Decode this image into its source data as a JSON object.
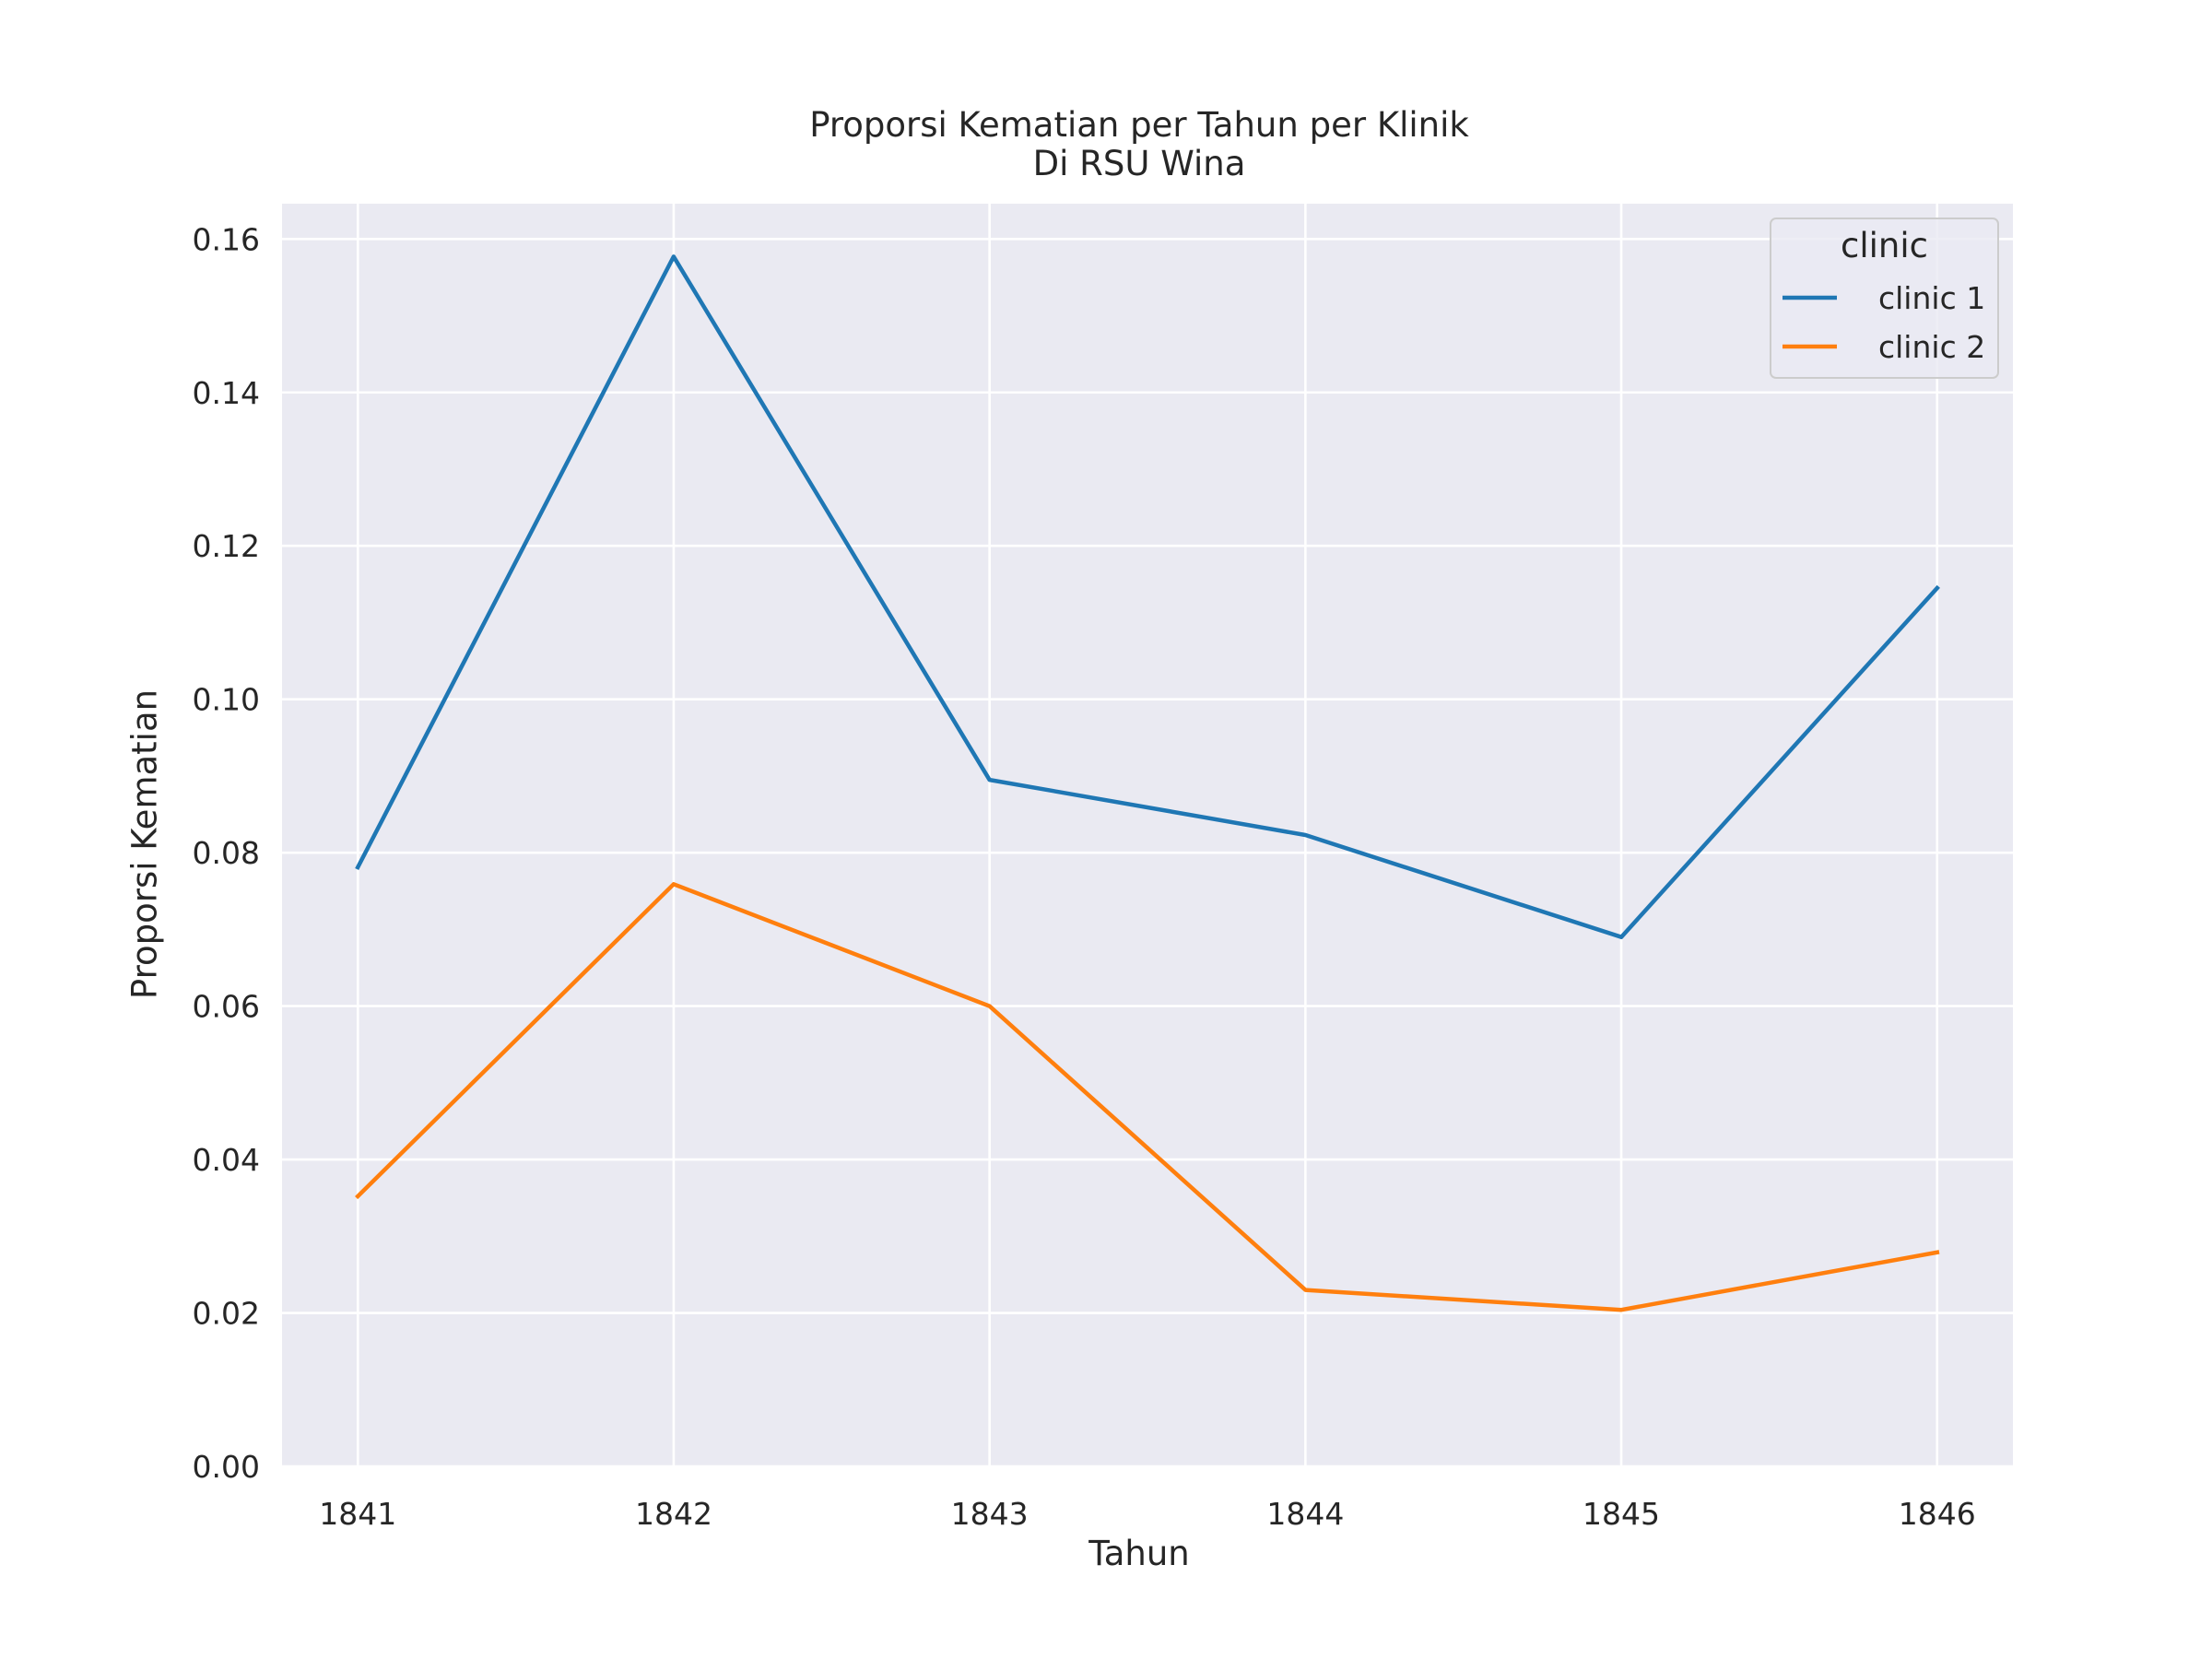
{
  "chart_data": {
    "type": "line",
    "title": "Proporsi Kematian per Tahun per Klinik",
    "subtitle": "Di RSU Wina",
    "xlabel": "Tahun",
    "ylabel": "Proporsi Kematian",
    "x": [
      1841,
      1842,
      1843,
      1844,
      1845,
      1846
    ],
    "xticks": [
      "1841",
      "1842",
      "1843",
      "1844",
      "1845",
      "1846"
    ],
    "yticks": [
      "0.00",
      "0.02",
      "0.04",
      "0.06",
      "0.08",
      "0.10",
      "0.12",
      "0.14",
      "0.16"
    ],
    "xlim": [
      1840.76,
      1846.24
    ],
    "ylim": [
      0.0,
      0.1646
    ],
    "grid": true,
    "legend": {
      "title": "clinic",
      "placement": "top-right"
    },
    "series": [
      {
        "name": "clinic 1",
        "color": "#1f77b4",
        "values": [
          0.0781,
          0.1577,
          0.0895,
          0.0823,
          0.069,
          0.1145
        ]
      },
      {
        "name": "clinic 2",
        "color": "#ff7f0e",
        "values": [
          0.0352,
          0.0759,
          0.06,
          0.023,
          0.0204,
          0.0279
        ]
      }
    ],
    "colors": {
      "plot_background": "#eaeaf2",
      "grid": "#ffffff",
      "text": "#262626"
    }
  }
}
